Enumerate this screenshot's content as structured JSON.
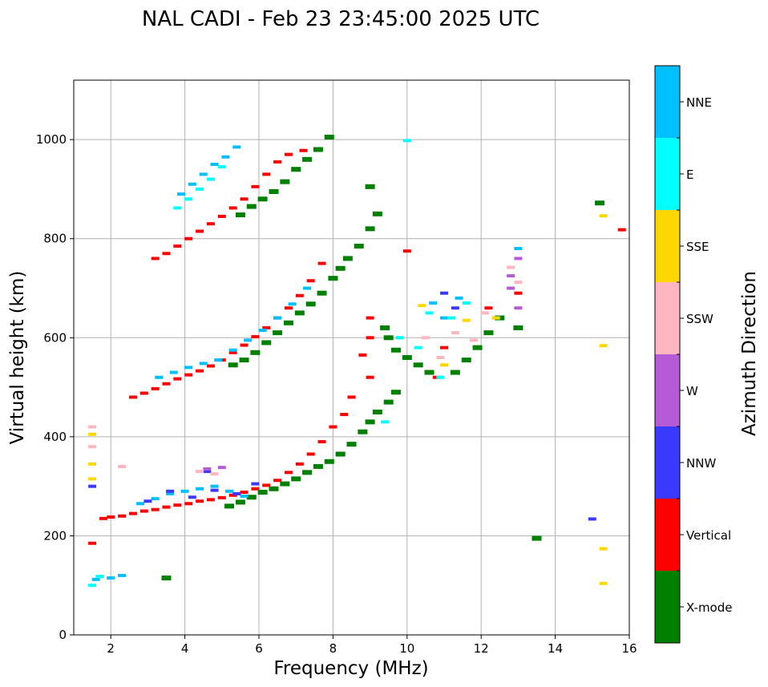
{
  "chart_data": {
    "type": "scatter",
    "title": "NAL CADI - Feb 23 23:45:00 2025 UTC",
    "xlabel": "Frequency (MHz)",
    "ylabel": "Virtual height (km)",
    "xlim": [
      1,
      16
    ],
    "ylim": [
      0,
      1120
    ],
    "xticks": [
      2,
      4,
      6,
      8,
      10,
      12,
      14,
      16
    ],
    "yticks": [
      0,
      200,
      400,
      600,
      800,
      1000
    ],
    "grid": true,
    "colorbar": {
      "label": "Azimuth Direction",
      "categories": [
        {
          "name": "X-mode",
          "color": "#008000"
        },
        {
          "name": "Vertical",
          "color": "#ff0000"
        },
        {
          "name": "NNW",
          "color": "#3a3aff"
        },
        {
          "name": "W",
          "color": "#b65bd6"
        },
        {
          "name": "SSW",
          "color": "#ffb6c1"
        },
        {
          "name": "SSE",
          "color": "#ffd700"
        },
        {
          "name": "E",
          "color": "#00ffff"
        },
        {
          "name": "NNE",
          "color": "#00bfff"
        }
      ]
    },
    "series": [
      {
        "name": "Vertical",
        "color": "#ff0000",
        "points": [
          [
            1.5,
            185
          ],
          [
            1.8,
            235
          ],
          [
            2.0,
            238
          ],
          [
            2.3,
            240
          ],
          [
            2.6,
            245
          ],
          [
            2.9,
            250
          ],
          [
            3.2,
            253
          ],
          [
            3.5,
            258
          ],
          [
            3.8,
            262
          ],
          [
            4.1,
            265
          ],
          [
            4.4,
            270
          ],
          [
            4.7,
            273
          ],
          [
            5.0,
            277
          ],
          [
            5.3,
            282
          ],
          [
            5.6,
            288
          ],
          [
            5.9,
            295
          ],
          [
            6.2,
            302
          ],
          [
            6.5,
            312
          ],
          [
            6.8,
            328
          ],
          [
            7.1,
            345
          ],
          [
            7.4,
            365
          ],
          [
            7.7,
            390
          ],
          [
            8.0,
            420
          ],
          [
            8.3,
            445
          ],
          [
            8.5,
            480
          ],
          [
            2.6,
            480
          ],
          [
            2.9,
            488
          ],
          [
            3.2,
            497
          ],
          [
            3.5,
            507
          ],
          [
            3.8,
            517
          ],
          [
            4.1,
            525
          ],
          [
            4.4,
            533
          ],
          [
            4.7,
            543
          ],
          [
            5.0,
            555
          ],
          [
            5.3,
            570
          ],
          [
            5.6,
            585
          ],
          [
            5.9,
            602
          ],
          [
            6.2,
            620
          ],
          [
            6.5,
            640
          ],
          [
            6.8,
            660
          ],
          [
            7.1,
            685
          ],
          [
            7.4,
            715
          ],
          [
            7.7,
            750
          ],
          [
            3.2,
            760
          ],
          [
            3.5,
            770
          ],
          [
            3.8,
            785
          ],
          [
            4.1,
            800
          ],
          [
            4.4,
            815
          ],
          [
            4.7,
            830
          ],
          [
            5.0,
            845
          ],
          [
            5.3,
            862
          ],
          [
            5.6,
            880
          ],
          [
            5.9,
            905
          ],
          [
            6.2,
            930
          ],
          [
            6.5,
            955
          ],
          [
            6.8,
            970
          ],
          [
            7.2,
            978
          ],
          [
            9.0,
            640
          ],
          [
            9.0,
            600
          ],
          [
            8.8,
            565
          ],
          [
            9.0,
            520
          ],
          [
            10.0,
            775
          ],
          [
            10.8,
            520
          ],
          [
            11.0,
            580
          ],
          [
            12.2,
            660
          ],
          [
            13.0,
            690
          ],
          [
            15.8,
            818
          ]
        ]
      },
      {
        "name": "X-mode",
        "color": "#008000",
        "points": [
          [
            3.5,
            115
          ],
          [
            5.2,
            260
          ],
          [
            5.5,
            268
          ],
          [
            5.8,
            278
          ],
          [
            6.1,
            288
          ],
          [
            6.4,
            295
          ],
          [
            6.7,
            305
          ],
          [
            7.0,
            315
          ],
          [
            7.3,
            328
          ],
          [
            7.6,
            340
          ],
          [
            7.9,
            350
          ],
          [
            8.2,
            365
          ],
          [
            8.5,
            385
          ],
          [
            8.8,
            410
          ],
          [
            9.0,
            430
          ],
          [
            9.2,
            450
          ],
          [
            9.5,
            470
          ],
          [
            9.7,
            490
          ],
          [
            5.3,
            545
          ],
          [
            5.6,
            555
          ],
          [
            5.9,
            570
          ],
          [
            6.2,
            590
          ],
          [
            6.5,
            610
          ],
          [
            6.8,
            630
          ],
          [
            7.1,
            650
          ],
          [
            7.4,
            668
          ],
          [
            7.7,
            690
          ],
          [
            8.0,
            720
          ],
          [
            8.2,
            740
          ],
          [
            8.4,
            760
          ],
          [
            8.7,
            785
          ],
          [
            9.0,
            820
          ],
          [
            9.2,
            850
          ],
          [
            5.5,
            848
          ],
          [
            5.8,
            865
          ],
          [
            6.1,
            880
          ],
          [
            6.4,
            895
          ],
          [
            6.7,
            915
          ],
          [
            7.0,
            940
          ],
          [
            7.3,
            960
          ],
          [
            7.6,
            980
          ],
          [
            7.9,
            1005
          ],
          [
            9.0,
            905
          ],
          [
            9.4,
            620
          ],
          [
            9.5,
            600
          ],
          [
            9.7,
            575
          ],
          [
            10.0,
            560
          ],
          [
            10.3,
            545
          ],
          [
            10.6,
            530
          ],
          [
            11.3,
            530
          ],
          [
            11.6,
            555
          ],
          [
            11.9,
            580
          ],
          [
            12.2,
            610
          ],
          [
            12.5,
            640
          ],
          [
            13.0,
            620
          ],
          [
            13.5,
            195
          ],
          [
            15.2,
            872
          ]
        ]
      },
      {
        "name": "NNE",
        "color": "#00bfff",
        "points": [
          [
            1.6,
            112
          ],
          [
            2.0,
            115
          ],
          [
            2.3,
            120
          ],
          [
            2.8,
            265
          ],
          [
            3.2,
            275
          ],
          [
            3.6,
            285
          ],
          [
            4.0,
            290
          ],
          [
            4.4,
            295
          ],
          [
            4.8,
            300
          ],
          [
            5.2,
            290
          ],
          [
            5.6,
            280
          ],
          [
            3.3,
            520
          ],
          [
            3.7,
            530
          ],
          [
            4.1,
            540
          ],
          [
            4.5,
            548
          ],
          [
            4.9,
            555
          ],
          [
            5.3,
            575
          ],
          [
            5.7,
            595
          ],
          [
            6.1,
            615
          ],
          [
            6.5,
            640
          ],
          [
            6.9,
            668
          ],
          [
            7.3,
            700
          ],
          [
            3.9,
            890
          ],
          [
            4.2,
            910
          ],
          [
            4.5,
            930
          ],
          [
            4.8,
            950
          ],
          [
            5.1,
            965
          ],
          [
            5.4,
            985
          ],
          [
            10.7,
            670
          ],
          [
            11.0,
            640
          ],
          [
            11.4,
            680
          ],
          [
            13.0,
            780
          ]
        ]
      },
      {
        "name": "E",
        "color": "#00ffff",
        "points": [
          [
            1.5,
            100
          ],
          [
            1.7,
            118
          ],
          [
            3.8,
            862
          ],
          [
            4.1,
            880
          ],
          [
            4.4,
            900
          ],
          [
            4.7,
            920
          ],
          [
            5.0,
            945
          ],
          [
            9.4,
            430
          ],
          [
            9.8,
            600
          ],
          [
            10.3,
            580
          ],
          [
            10.6,
            650
          ],
          [
            10.9,
            520
          ],
          [
            11.2,
            640
          ],
          [
            11.6,
            670
          ],
          [
            10.0,
            998
          ]
        ]
      },
      {
        "name": "NNW",
        "color": "#3a3aff",
        "points": [
          [
            1.5,
            300
          ],
          [
            3.0,
            270
          ],
          [
            3.6,
            290
          ],
          [
            4.2,
            278
          ],
          [
            4.8,
            292
          ],
          [
            5.4,
            285
          ],
          [
            5.9,
            305
          ],
          [
            4.6,
            330
          ],
          [
            11.0,
            690
          ],
          [
            11.3,
            660
          ],
          [
            15.0,
            234
          ]
        ]
      },
      {
        "name": "W",
        "color": "#b65bd6",
        "points": [
          [
            4.6,
            335
          ],
          [
            5.0,
            338
          ],
          [
            12.8,
            700
          ],
          [
            13.0,
            760
          ],
          [
            13.0,
            660
          ],
          [
            12.8,
            725
          ]
        ]
      },
      {
        "name": "SSW",
        "color": "#ffb6c1",
        "points": [
          [
            1.5,
            420
          ],
          [
            1.5,
            380
          ],
          [
            2.3,
            340
          ],
          [
            4.4,
            330
          ],
          [
            4.8,
            325
          ],
          [
            10.5,
            600
          ],
          [
            10.9,
            560
          ],
          [
            11.3,
            610
          ],
          [
            11.8,
            595
          ],
          [
            12.1,
            650
          ],
          [
            12.8,
            742
          ],
          [
            13.0,
            712
          ]
        ]
      },
      {
        "name": "SSE",
        "color": "#ffd700",
        "points": [
          [
            1.5,
            345
          ],
          [
            1.5,
            405
          ],
          [
            1.5,
            315
          ],
          [
            10.4,
            665
          ],
          [
            11.0,
            545
          ],
          [
            11.6,
            635
          ],
          [
            12.4,
            640
          ],
          [
            15.3,
            584
          ],
          [
            15.3,
            846
          ],
          [
            15.3,
            174
          ],
          [
            15.3,
            104
          ]
        ]
      }
    ]
  }
}
